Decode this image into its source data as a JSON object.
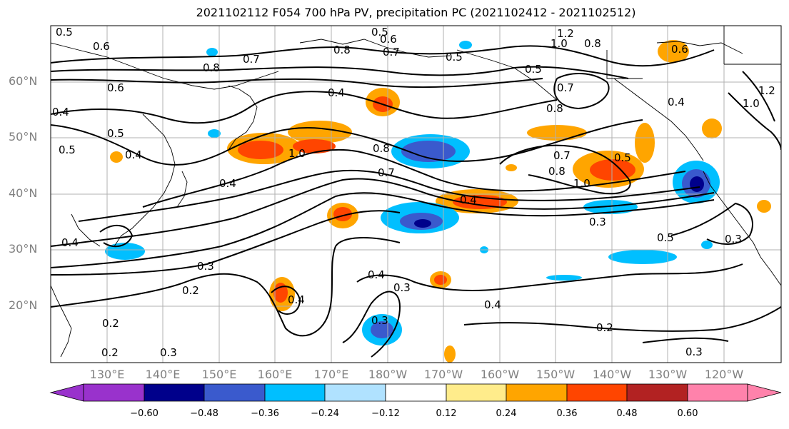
{
  "title": "2021102112 F054 700 hPa PV, precipitation PC (2021102412 - 2021102512)",
  "lat_labels": [
    "60°N",
    "50°N",
    "40°N",
    "30°N",
    "20°N"
  ],
  "lon_labels": [
    "130°E",
    "140°E",
    "150°E",
    "160°E",
    "170°E",
    "180°W",
    "170°W",
    "160°W",
    "150°W",
    "140°W",
    "130°W",
    "120°W"
  ],
  "colorbar": {
    "ticks": [
      "−0.60",
      "−0.48",
      "−0.36",
      "−0.24",
      "−0.12",
      "0.12",
      "0.24",
      "0.36",
      "0.48",
      "0.60"
    ],
    "colors": [
      "#9932cc",
      "#00008b",
      "#3a5acd",
      "#00bfff",
      "#b0e2ff",
      "#ffffff",
      "#ffec8b",
      "#ffa500",
      "#ff4500",
      "#b22222",
      "#ff82ab"
    ]
  },
  "contour_labels": [
    "0.5",
    "0.6",
    "0.6",
    "0.4",
    "0.5",
    "0.4",
    "0.4",
    "0.7",
    "0.8",
    "0.8",
    "0.5",
    "0.6",
    "0.7",
    "0.5",
    "1.2",
    "1.0",
    "0.8",
    "0.6",
    "0.5",
    "0.7",
    "0.8",
    "0.4",
    "1.0",
    "0.8",
    "0.7",
    "0.7",
    "0.8",
    "0.5",
    "1.0",
    "0.4",
    "0.3",
    "0.5",
    "0.3",
    "0.4",
    "0.3",
    "0.2",
    "0.4",
    "0.2",
    "0.3",
    "0.2",
    "0.3",
    "0.4",
    "0.3",
    "0.4",
    "0.2",
    "0.3",
    "0.5",
    "0.4",
    "1.0",
    "1.2"
  ]
}
